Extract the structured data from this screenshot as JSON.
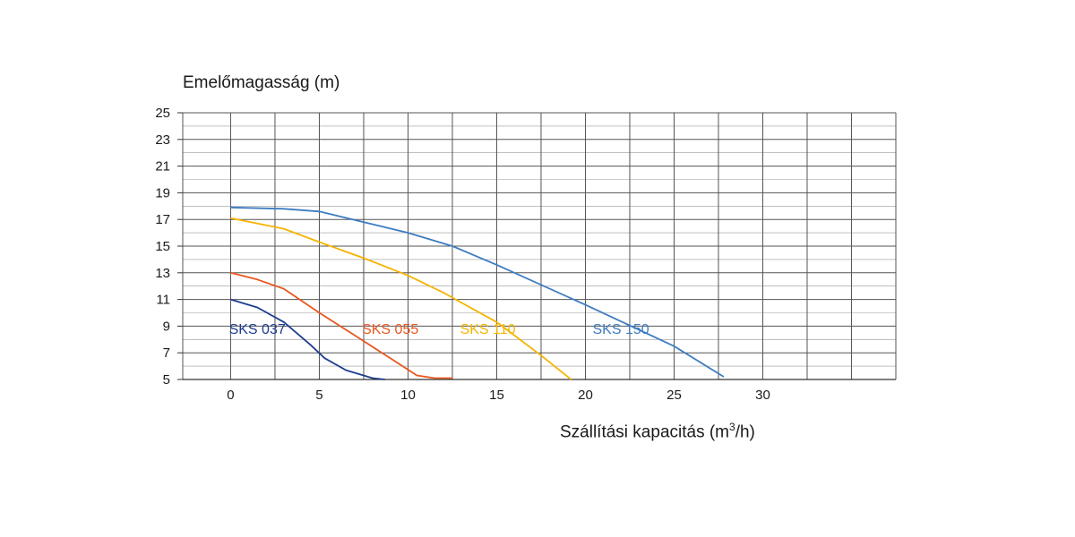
{
  "chart_data": {
    "type": "line",
    "ylabel": "Emelőmagasság (m)",
    "xlabel_main": "Szállítási kapacitás (m",
    "xlabel_sup": "3",
    "xlabel_end": "/h)",
    "xlim": [
      -2.7,
      37.5
    ],
    "ylim": [
      5,
      25
    ],
    "x_ticks": [
      0,
      5,
      10,
      15,
      20,
      25,
      30
    ],
    "y_ticks": [
      25,
      23,
      21,
      19,
      17,
      15,
      13,
      11,
      9,
      7,
      5
    ],
    "grid": true,
    "series": [
      {
        "name": "SKS 037",
        "color": "#1f3d8f",
        "x": [
          0,
          1.5,
          3,
          4.5,
          5.3,
          6.5,
          8,
          8.7
        ],
        "y": [
          11.0,
          10.4,
          9.3,
          7.6,
          6.6,
          5.7,
          5.1,
          5.0
        ]
      },
      {
        "name": "SKS 055",
        "color": "#e8571f",
        "x": [
          0,
          1.5,
          3,
          5,
          7,
          9,
          10.5,
          11.5,
          12.5
        ],
        "y": [
          13.0,
          12.5,
          11.8,
          10.0,
          8.3,
          6.6,
          5.3,
          5.1,
          5.1
        ]
      },
      {
        "name": "SKS 110",
        "color": "#f5b400",
        "x": [
          0,
          3,
          5,
          7.5,
          10,
          12,
          15,
          17.5,
          19.2
        ],
        "y": [
          17.1,
          16.3,
          15.3,
          14.1,
          12.8,
          11.5,
          9.3,
          6.8,
          5.0
        ]
      },
      {
        "name": "SKS 150",
        "color": "#3e7cc1",
        "x": [
          0,
          3,
          5,
          10,
          12.5,
          15,
          20,
          25,
          27.8
        ],
        "y": [
          17.9,
          17.8,
          17.6,
          16.0,
          15.0,
          13.6,
          10.6,
          7.5,
          5.2
        ]
      }
    ]
  }
}
